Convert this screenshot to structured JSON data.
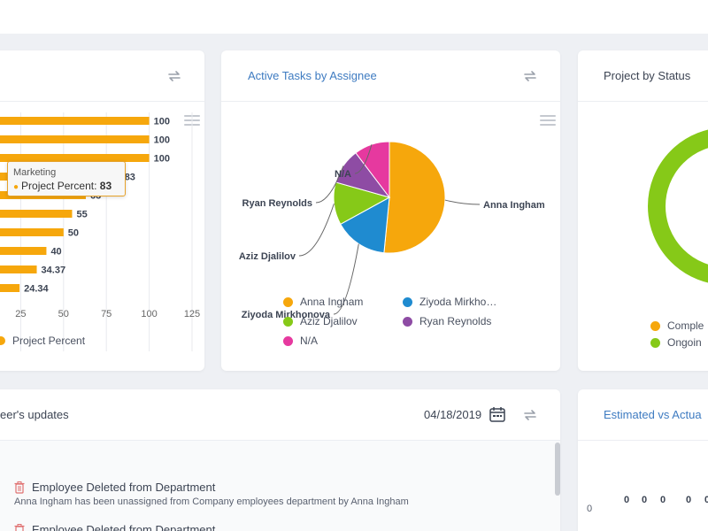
{
  "colors": {
    "orange": "#f6a70c",
    "blue": "#1f8bd0",
    "green": "#86c918",
    "purple": "#8e4ca4",
    "pink": "#e6399f",
    "title_blue": "#3e7bc1"
  },
  "card1": {
    "legend_label": "Project Percent",
    "tooltip": {
      "category": "Marketing",
      "series": "Project Percent:",
      "value": "83"
    },
    "chart_data": {
      "type": "bar",
      "orientation": "horizontal",
      "series": [
        {
          "name": "Project Percent",
          "values": [
            100,
            100,
            100,
            83,
            63,
            55,
            50,
            40,
            34.37,
            24.34
          ]
        }
      ],
      "data_labels": [
        "100",
        "100",
        "100",
        "83",
        "63",
        "55",
        "50",
        "40",
        "34.37",
        "24.34"
      ],
      "xticks": [
        "25",
        "50",
        "75",
        "100",
        "125"
      ],
      "xlim": [
        0,
        125
      ],
      "grid": true,
      "legend": "bottom"
    }
  },
  "card2": {
    "title": "Active Tasks by Assignee",
    "chart_data": {
      "type": "pie",
      "labels": [
        "Anna Ingham",
        "Ziyoda Mirkhonova",
        "Aziz Djalilov",
        "Ryan Reynolds",
        "N/A"
      ],
      "values": [
        50,
        15,
        12,
        10,
        10
      ],
      "legend": "bottom"
    },
    "legend": [
      "Anna Ingham",
      "Ziyoda Mirkho…",
      "Aziz Djalilov",
      "Ryan Reynolds",
      "N/A"
    ]
  },
  "card3": {
    "title": "Project by Status",
    "legend": [
      "Comple",
      "Ongoin"
    ]
  },
  "card4": {
    "title": "eer's updates",
    "date": "04/18/2019",
    "updates": [
      {
        "title": "Employee Deleted from Department",
        "desc": "Anna Ingham has been unassigned from Company employees department by Anna Ingham"
      },
      {
        "title": "Employee Deleted from Department"
      }
    ]
  },
  "card5": {
    "title": "Estimated vs Actua",
    "axis_zero": "0",
    "zero_labels": [
      "0",
      "0",
      "0",
      "0",
      "0"
    ]
  }
}
